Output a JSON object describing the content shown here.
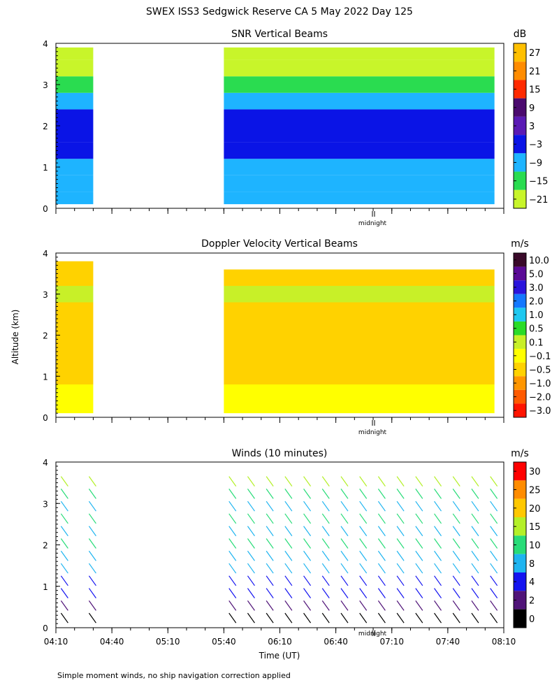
{
  "page": {
    "title": "SWEX ISS3 Sedgwick Reserve CA   5 May 2022 Day 125",
    "ylabel": "Altitude (km)",
    "xlabel": "Time (UT)",
    "footnote": "Simple moment winds, no ship navigation correction applied",
    "midnight_label": "midnight"
  },
  "chart_data": [
    {
      "type": "heatmap",
      "title": "SNR Vertical Beams",
      "xlabel": "Time (UT)",
      "ylabel": "Altitude (km)",
      "xlim": [
        "04:10",
        "08:10"
      ],
      "ylim": [
        0,
        4
      ],
      "yticks": [
        "0",
        "1",
        "2",
        "3",
        "4"
      ],
      "colorbar": {
        "unit": "dB",
        "labels": [
          "27",
          "21",
          "15",
          "9",
          "3",
          "−3",
          "−9",
          "−15",
          "−21"
        ],
        "colors": [
          "#ffc000",
          "#ff8c00",
          "#ff2a00",
          "#4b0a6e",
          "#5a1ab4",
          "#0a14e6",
          "#1eb4ff",
          "#2adc50",
          "#c8f52a"
        ]
      },
      "data_segments": [
        {
          "start": "04:10",
          "end": "04:30",
          "bottom_km": 0.1,
          "top_km": 3.9
        },
        {
          "start": "05:40",
          "end": "08:05",
          "bottom_km": 0.1,
          "top_km": 3.9
        }
      ],
      "profile_km_color": [
        [
          0.2,
          "#1eb4ff"
        ],
        [
          0.6,
          "#1eb4ff"
        ],
        [
          1.0,
          "#1eb4ff"
        ],
        [
          1.4,
          "#0a14e6"
        ],
        [
          1.8,
          "#0a14e6"
        ],
        [
          2.2,
          "#0a14e6"
        ],
        [
          2.6,
          "#1eb4ff"
        ],
        [
          3.0,
          "#2adc50"
        ],
        [
          3.4,
          "#c8f52a"
        ],
        [
          3.8,
          "#c8f52a"
        ]
      ]
    },
    {
      "type": "heatmap",
      "title": "Doppler Velocity Vertical Beams",
      "xlabel": "Time (UT)",
      "ylabel": "Altitude (km)",
      "xlim": [
        "04:10",
        "08:10"
      ],
      "ylim": [
        0,
        4
      ],
      "yticks": [
        "0",
        "1",
        "2",
        "3",
        "4"
      ],
      "colorbar": {
        "unit": "m/s",
        "labels": [
          "10.0",
          "5.0",
          "3.0",
          "2.0",
          "1.0",
          "0.5",
          "0.1",
          "−0.1",
          "−0.5",
          "−1.0",
          "−2.0",
          "−3.0"
        ],
        "colors": [
          "#3a0a2a",
          "#5a0a96",
          "#2a14dc",
          "#1478ff",
          "#1ec8f0",
          "#2adc28",
          "#c8f028",
          "#ffff00",
          "#ffd200",
          "#ff9600",
          "#ff5a00",
          "#ff1400"
        ]
      },
      "data_segments": [
        {
          "start": "04:10",
          "end": "04:30",
          "bottom_km": 0.1,
          "top_km": 3.8
        },
        {
          "start": "05:40",
          "end": "08:05",
          "bottom_km": 0.1,
          "top_km": 3.6
        }
      ],
      "profile_km_color": [
        [
          0.2,
          "#ffff00"
        ],
        [
          0.6,
          "#ffff00"
        ],
        [
          1.0,
          "#ffd200"
        ],
        [
          1.4,
          "#ffd200"
        ],
        [
          1.8,
          "#ffd200"
        ],
        [
          2.2,
          "#ffd200"
        ],
        [
          2.6,
          "#ffd200"
        ],
        [
          3.0,
          "#c8f028"
        ],
        [
          3.4,
          "#ffd200"
        ]
      ]
    },
    {
      "type": "scatter",
      "title": "Winds (10 minutes)",
      "xlabel": "Time (UT)",
      "ylabel": "Altitude (km)",
      "xlim": [
        "04:10",
        "08:10"
      ],
      "xticks": [
        "04:10",
        "04:40",
        "05:10",
        "05:40",
        "06:10",
        "06:40",
        "07:10",
        "07:40",
        "08:10"
      ],
      "ylim": [
        0,
        4
      ],
      "yticks": [
        "0",
        "1",
        "2",
        "3",
        "4"
      ],
      "colorbar": {
        "unit": "m/s",
        "labels": [
          "30",
          "25",
          "20",
          "15",
          "10",
          "8",
          "4",
          "2",
          "0"
        ],
        "colors": [
          "#ff0000",
          "#ff8c00",
          "#ffc800",
          "#b4f028",
          "#28dc78",
          "#1eb4f0",
          "#1414f0",
          "#501478",
          "#000000"
        ]
      },
      "profile_times": [
        "04:15",
        "04:30",
        "05:45",
        "05:55",
        "06:05",
        "06:15",
        "06:25",
        "06:35",
        "06:45",
        "06:55",
        "07:05",
        "07:15",
        "07:25",
        "07:35",
        "07:45",
        "07:55",
        "08:05"
      ],
      "profile_km_color": [
        [
          0.2,
          "#000000"
        ],
        [
          0.5,
          "#501478"
        ],
        [
          0.8,
          "#1414f0"
        ],
        [
          1.1,
          "#1414f0"
        ],
        [
          1.4,
          "#1eb4f0"
        ],
        [
          1.7,
          "#1eb4f0"
        ],
        [
          2.0,
          "#28dc78"
        ],
        [
          2.3,
          "#1eb4f0"
        ],
        [
          2.6,
          "#28dc78"
        ],
        [
          2.9,
          "#1eb4f0"
        ],
        [
          3.2,
          "#28dc78"
        ],
        [
          3.5,
          "#b4f028"
        ]
      ]
    }
  ]
}
